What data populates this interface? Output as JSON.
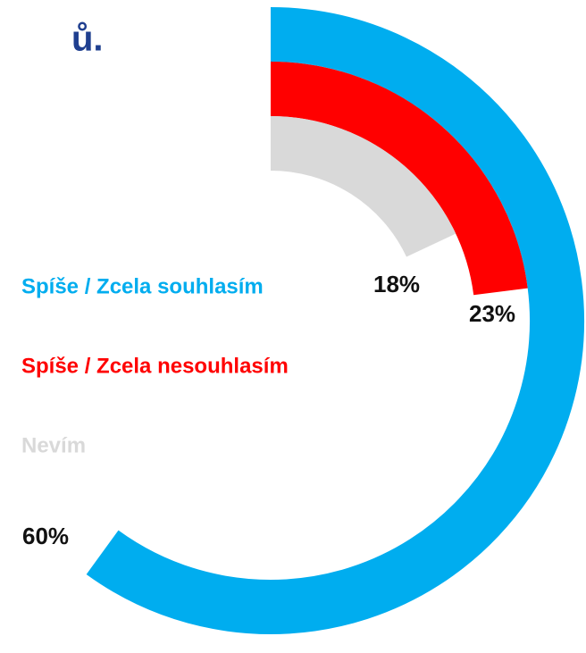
{
  "chart_data": {
    "type": "radial_bar",
    "title": "ů.",
    "ylim": [
      0,
      100
    ],
    "series": [
      {
        "name": "Spíše / Zcela souhlasím",
        "color": "#00adef",
        "values": [
          60
        ],
        "value_labels": [
          "60%"
        ]
      },
      {
        "name": "Spíše / Zcela nesouhlasím",
        "color": "#ff0000",
        "values": [
          23
        ],
        "value_labels": [
          "23%"
        ]
      },
      {
        "name": "Nevím",
        "color": "#d9d9d9",
        "values": [
          18
        ],
        "value_labels": [
          "18%"
        ]
      }
    ]
  }
}
